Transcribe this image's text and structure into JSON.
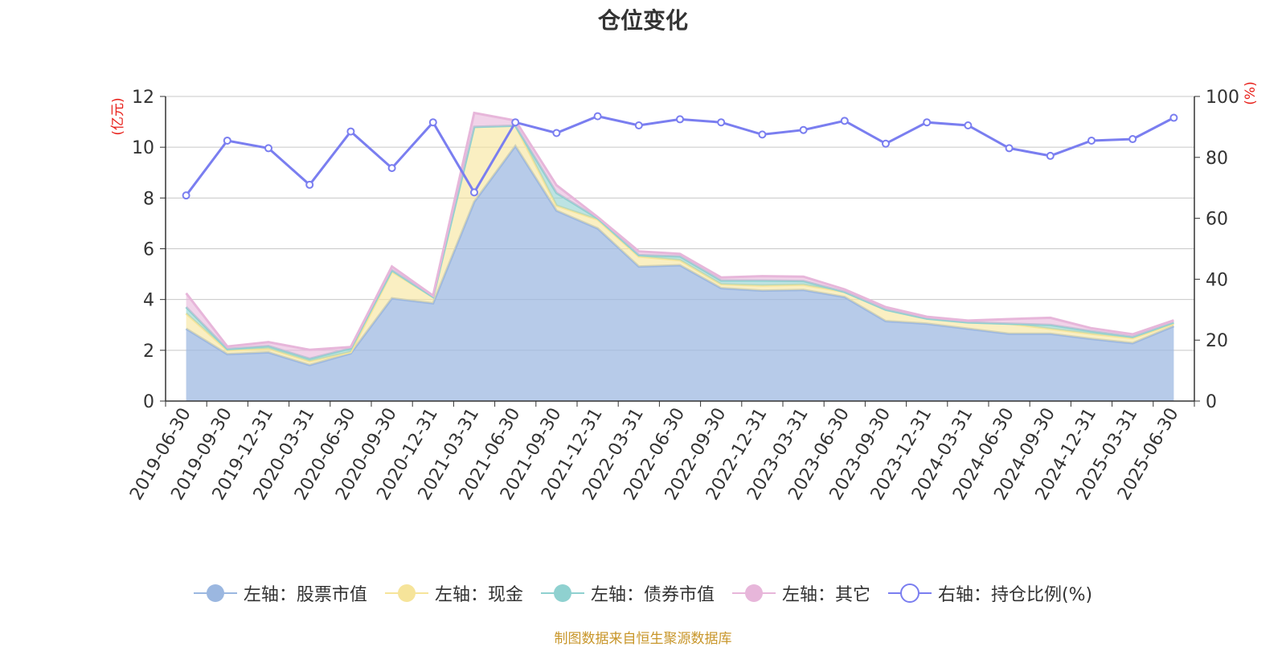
{
  "chart_data": {
    "type": "area",
    "title": "仓位变化",
    "left_axis_label": "(亿元)",
    "right_axis_label": "(%)",
    "left_ylim": [
      0,
      12
    ],
    "left_ticks": [
      0,
      2,
      4,
      6,
      8,
      10,
      12
    ],
    "right_ylim": [
      0,
      100
    ],
    "right_ticks": [
      0,
      20,
      40,
      60,
      80,
      100
    ],
    "grid": true,
    "legend_position": "bottom",
    "categories": [
      "2019-06-30",
      "2019-09-30",
      "2019-12-31",
      "2020-03-31",
      "2020-06-30",
      "2020-09-30",
      "2020-12-31",
      "2021-03-31",
      "2021-06-30",
      "2021-09-30",
      "2021-12-31",
      "2022-03-31",
      "2022-06-30",
      "2022-09-30",
      "2022-12-31",
      "2023-03-31",
      "2023-06-30",
      "2023-09-30",
      "2023-12-31",
      "2024-03-31",
      "2024-06-30",
      "2024-09-30",
      "2024-12-31",
      "2025-03-31",
      "2025-06-30"
    ],
    "stacked_series": [
      {
        "name": "左轴：股票市值",
        "color": "#9bb7e0",
        "values": [
          2.85,
          1.85,
          1.92,
          1.42,
          1.88,
          4.05,
          3.85,
          7.85,
          10.05,
          7.5,
          6.8,
          5.3,
          5.35,
          4.45,
          4.35,
          4.38,
          4.1,
          3.15,
          3.05,
          2.85,
          2.65,
          2.65,
          2.45,
          2.28,
          2.95
        ]
      },
      {
        "name": "左轴：现金",
        "color": "#f6e49a",
        "values": [
          0.6,
          0.15,
          0.15,
          0.15,
          0.05,
          1.05,
          0.25,
          2.95,
          0.8,
          0.2,
          0.35,
          0.4,
          0.2,
          0.15,
          0.2,
          0.2,
          0.2,
          0.45,
          0.2,
          0.25,
          0.4,
          0.2,
          0.2,
          0.2,
          0.1
        ]
      },
      {
        "name": "左轴：债券市值",
        "color": "#8fd1d0",
        "values": [
          0.25,
          0.05,
          0.1,
          0.1,
          0.15,
          0.05,
          0.0,
          0.0,
          0.0,
          0.5,
          0.05,
          0.05,
          0.15,
          0.15,
          0.2,
          0.15,
          0.0,
          0.0,
          0.0,
          0.0,
          0.0,
          0.15,
          0.1,
          0.05,
          0.05
        ]
      },
      {
        "name": "左轴：其它",
        "color": "#e7b6da",
        "values": [
          0.55,
          0.1,
          0.15,
          0.35,
          0.05,
          0.15,
          0.05,
          0.55,
          0.2,
          0.3,
          0.05,
          0.15,
          0.1,
          0.12,
          0.17,
          0.17,
          0.1,
          0.1,
          0.07,
          0.07,
          0.18,
          0.28,
          0.12,
          0.1,
          0.08
        ]
      }
    ],
    "line_series": {
      "name": "右轴：持仓比例(%)",
      "color": "#7a7ef0",
      "values": [
        67.5,
        85.5,
        83,
        71,
        88.5,
        76.5,
        91.5,
        68.5,
        91.5,
        88,
        93.5,
        90.5,
        92.5,
        91.5,
        87.5,
        89,
        92,
        84.5,
        91.5,
        90.5,
        83,
        80.5,
        85.5,
        86,
        93
      ]
    }
  },
  "legend": {
    "stock": "左轴：股票市值",
    "cash": "左轴：现金",
    "bond": "左轴：债券市值",
    "other": "左轴：其它",
    "ratio": "右轴：持仓比例(%)"
  },
  "source_note": "制图数据来自恒生聚源数据库",
  "colors": {
    "stock": "#9bb7e0",
    "cash": "#f6e49a",
    "bond": "#8fd1d0",
    "other": "#e7b6da",
    "ratio": "#7a7ef0",
    "axis_label": "#e8201a"
  }
}
